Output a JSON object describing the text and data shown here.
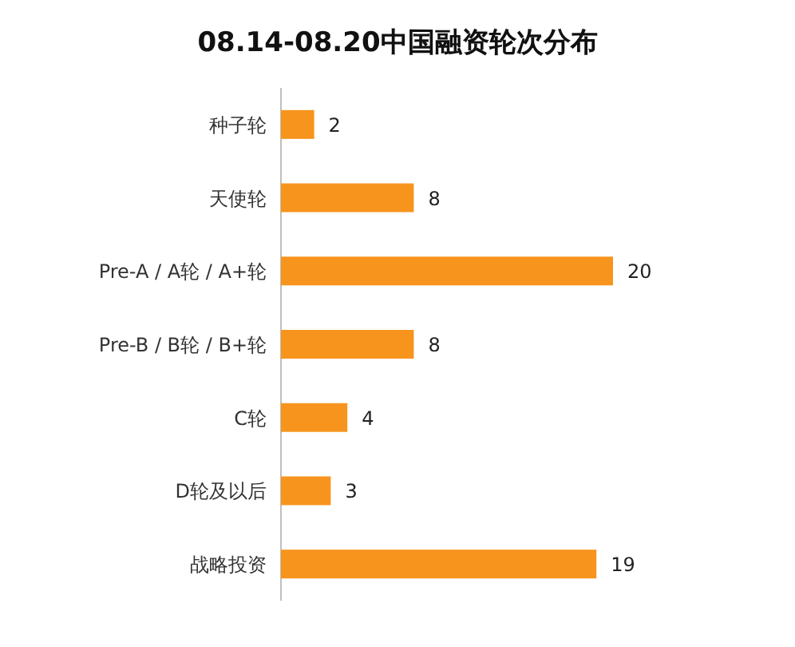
{
  "chart_data": {
    "type": "bar",
    "orientation": "horizontal",
    "title": "08.14-08.20中国融资轮次分布",
    "categories": [
      "种子轮",
      "天使轮",
      "Pre-A / A轮 / A+轮",
      "Pre-B / B轮 / B+轮",
      "C轮",
      "D轮及以后",
      "战略投资"
    ],
    "values": [
      2,
      8,
      20,
      8,
      4,
      3,
      19
    ],
    "color": "#f7941d",
    "data_labels": true
  }
}
